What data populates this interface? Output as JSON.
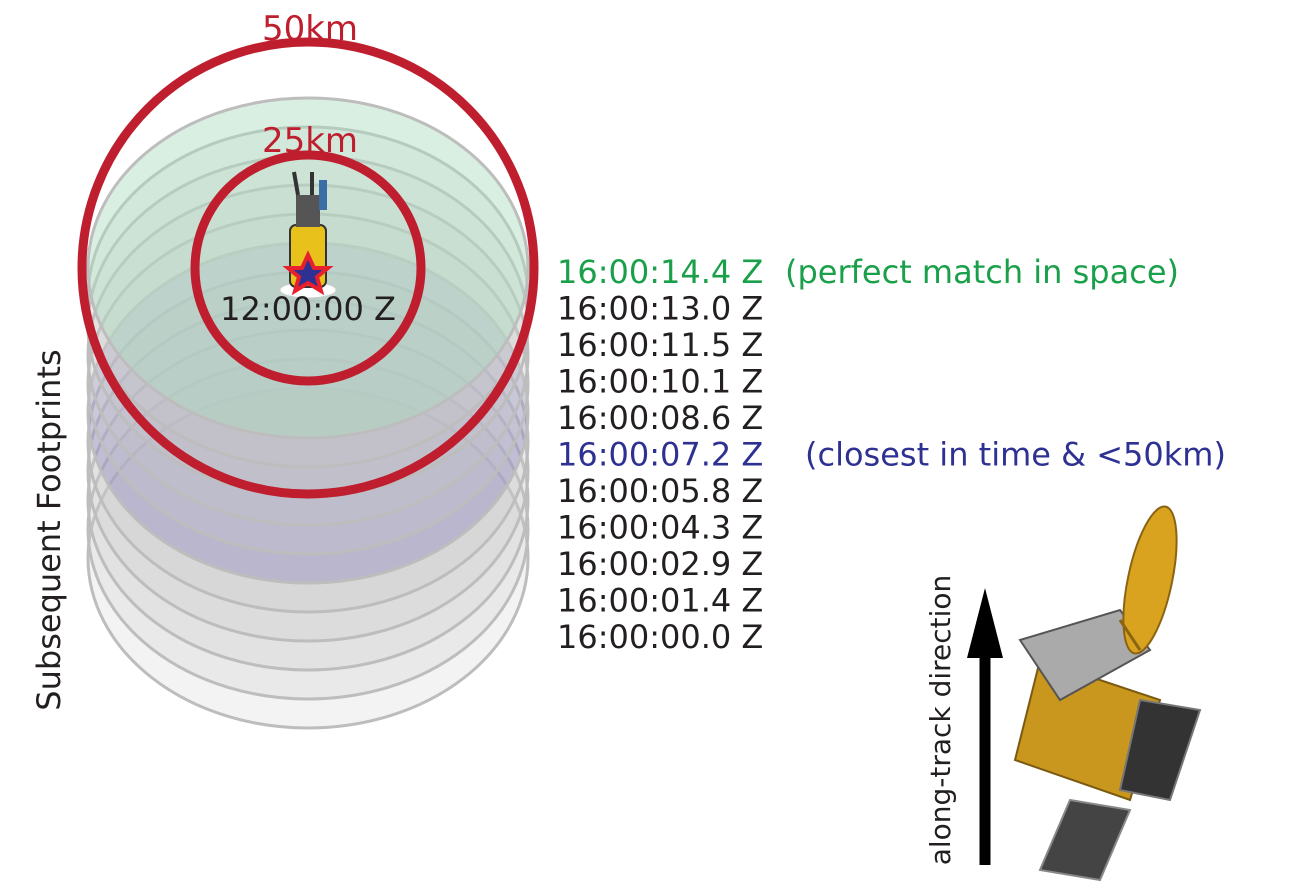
{
  "radii": {
    "outer": "50km",
    "inner": "25km"
  },
  "buoy": {
    "time": "12:00:00 Z"
  },
  "footprints": [
    {
      "time": "16:00:14.4 Z",
      "note": "(perfect match in space)",
      "color": "#1aa04a"
    },
    {
      "time": "16:00:13.0 Z"
    },
    {
      "time": "16:00:11.5 Z"
    },
    {
      "time": "16:00:10.1 Z"
    },
    {
      "time": "16:00:08.6 Z"
    },
    {
      "time": "16:00:07.2 Z",
      "note": "(closest in time & <50km)",
      "color": "#2e3192"
    },
    {
      "time": "16:00:05.8 Z"
    },
    {
      "time": "16:00:04.3 Z"
    },
    {
      "time": "16:00:02.9 Z"
    },
    {
      "time": "16:00:01.4 Z"
    },
    {
      "time": "16:00:00.0 Z"
    }
  ],
  "axis_label": "Subsequent Footprints",
  "direction_label": "along-track direction"
}
